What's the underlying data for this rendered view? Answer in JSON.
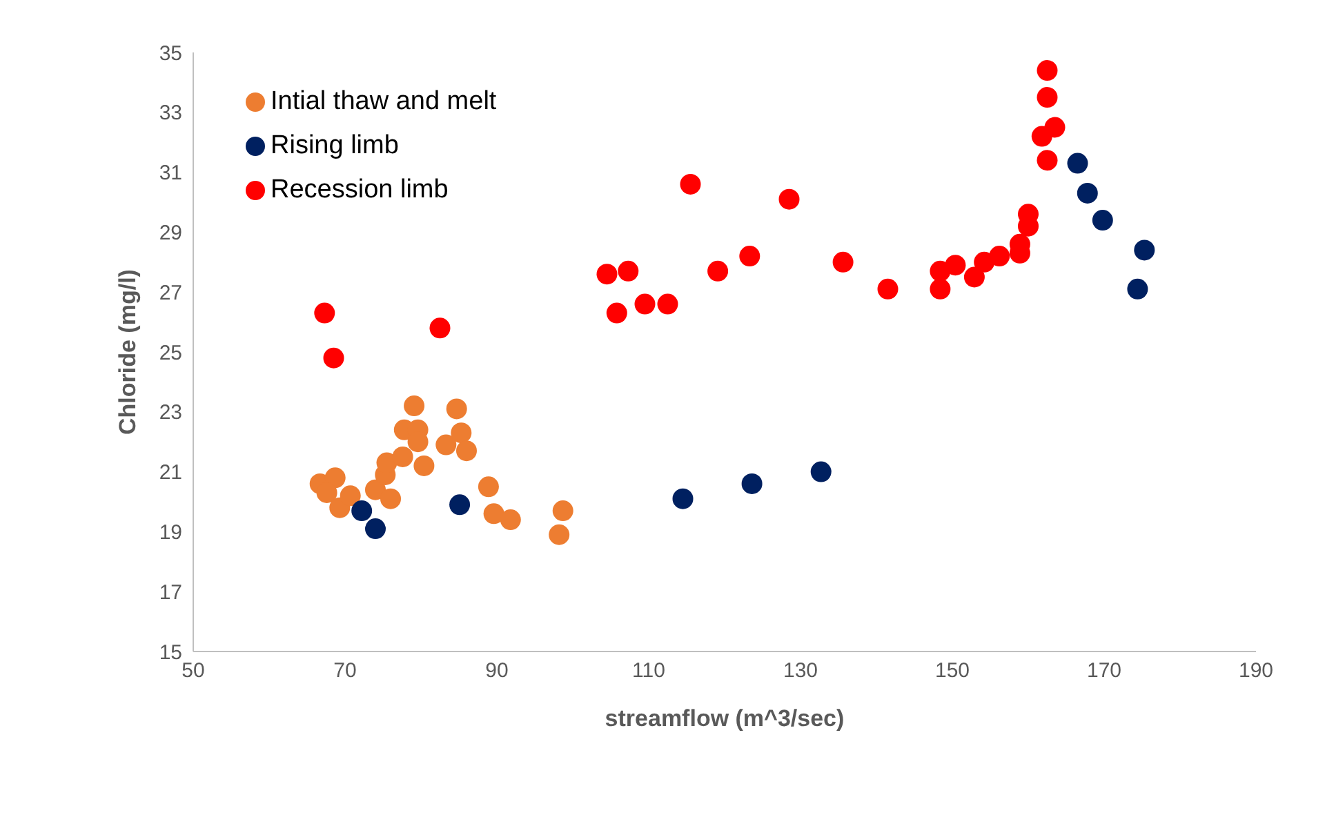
{
  "chart_data": {
    "type": "scatter",
    "xlabel": "streamflow (m^3/sec)",
    "ylabel": "Chloride (mg/l)",
    "xlim": [
      50,
      190
    ],
    "xticks": [
      50,
      70,
      90,
      110,
      130,
      150,
      170,
      190
    ],
    "ylim": [
      15,
      35
    ],
    "yticks": [
      15,
      17,
      19,
      21,
      23,
      25,
      27,
      29,
      31,
      33,
      35
    ],
    "grid": false,
    "legend": "top left",
    "marker": "circle",
    "series": [
      {
        "name": "Intial thaw and melt",
        "color": "#ed7d31",
        "x": [
          66.7,
          68.7,
          67.6,
          69.3,
          70.7,
          74.0,
          75.1,
          75.3,
          75.5,
          76.0,
          77.6,
          77.8,
          79.1,
          79.6,
          79.6,
          80.4,
          83.3,
          84.7,
          85.3,
          86.0,
          88.9,
          89.6,
          91.8,
          98.2,
          98.7
        ],
        "values": [
          20.6,
          20.8,
          20.3,
          19.8,
          20.2,
          20.4,
          null,
          20.9,
          21.3,
          20.1,
          21.5,
          22.4,
          23.2,
          22.4,
          22.0,
          21.2,
          21.9,
          23.1,
          22.3,
          21.7,
          20.5,
          19.6,
          19.4,
          18.9,
          19.7
        ]
      },
      {
        "name": "Rising limb",
        "color": "#002060",
        "x": [
          72.2,
          74.0,
          85.1,
          114.5,
          123.6,
          132.7,
          166.5,
          167.8,
          169.8,
          175.3,
          174.4
        ],
        "values": [
          19.7,
          19.1,
          19.9,
          20.1,
          20.6,
          21.0,
          31.3,
          30.3,
          29.4,
          28.4,
          27.1
        ]
      },
      {
        "name": "Recession limb",
        "color": "#ff0000",
        "x": [
          67.3,
          68.5,
          82.5,
          104.5,
          105.8,
          107.3,
          109.5,
          112.5,
          115.5,
          119.1,
          123.3,
          128.5,
          135.6,
          141.5,
          148.4,
          148.4,
          150.4,
          152.9,
          154.2,
          156.2,
          158.9,
          158.9,
          160.0,
          160.0,
          161.8,
          162.5,
          162.5,
          162.5,
          163.5
        ],
        "values": [
          26.3,
          24.8,
          25.8,
          27.6,
          26.3,
          27.7,
          26.6,
          26.6,
          30.6,
          27.7,
          28.2,
          30.1,
          28.0,
          27.1,
          27.7,
          27.1,
          27.9,
          27.5,
          28.0,
          28.2,
          28.3,
          28.6,
          29.2,
          29.6,
          32.2,
          31.4,
          33.5,
          34.4,
          32.5
        ]
      }
    ]
  }
}
